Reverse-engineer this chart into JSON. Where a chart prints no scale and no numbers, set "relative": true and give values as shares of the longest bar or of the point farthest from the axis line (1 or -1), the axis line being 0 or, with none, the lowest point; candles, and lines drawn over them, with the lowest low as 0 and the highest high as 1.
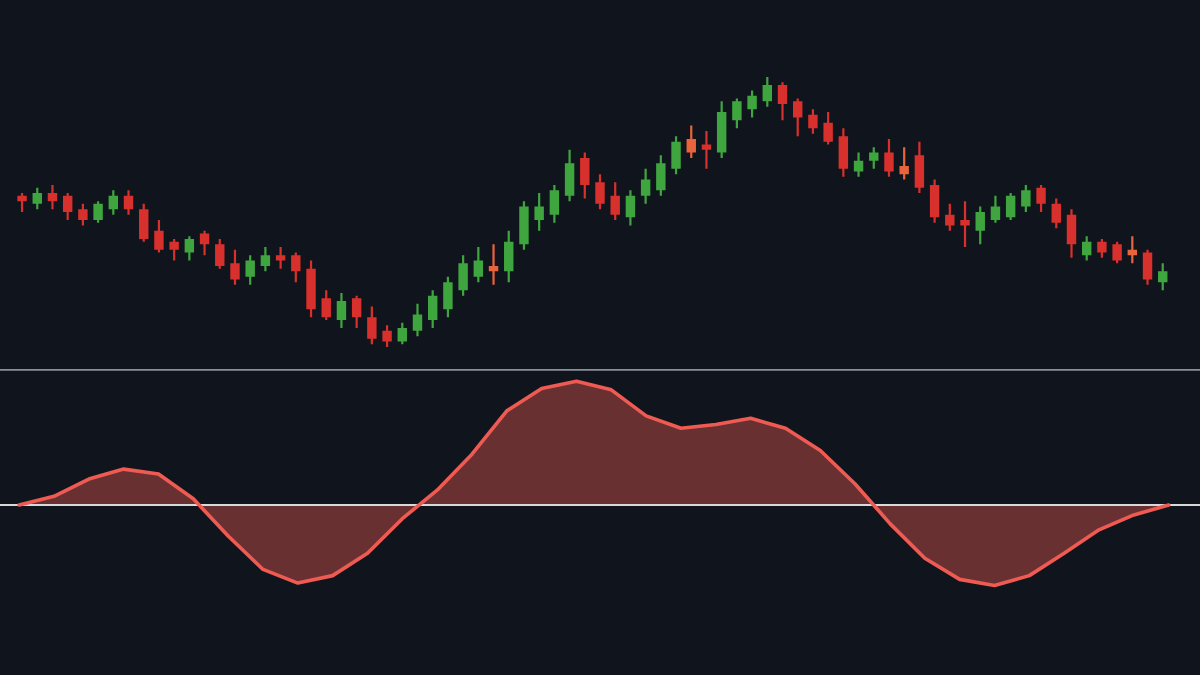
{
  "chart_data": [
    {
      "type": "candlestick",
      "relative": true,
      "categories": [
        null,
        null,
        null,
        null,
        null,
        null,
        null,
        null,
        null,
        null,
        null,
        null,
        null,
        null,
        null,
        null,
        null,
        null,
        null,
        null,
        null,
        null,
        null,
        null,
        null,
        null,
        null,
        null,
        null,
        null,
        null,
        null,
        null,
        null,
        null,
        null,
        null,
        null,
        null,
        null,
        null,
        null,
        null,
        null,
        null,
        null,
        null,
        null,
        null,
        null,
        null,
        null,
        null,
        null,
        null,
        null,
        null,
        null,
        null,
        null,
        null,
        null,
        null,
        null,
        null,
        null,
        null,
        null,
        null,
        null,
        null,
        null,
        null,
        null,
        null,
        null
      ],
      "ohlc": [
        [
          0.56,
          0.57,
          0.5,
          0.54
        ],
        [
          0.53,
          0.59,
          0.51,
          0.57
        ],
        [
          0.57,
          0.6,
          0.51,
          0.54
        ],
        [
          0.56,
          0.57,
          0.47,
          0.5
        ],
        [
          0.51,
          0.53,
          0.45,
          0.47
        ],
        [
          0.47,
          0.54,
          0.46,
          0.53
        ],
        [
          0.51,
          0.58,
          0.49,
          0.56
        ],
        [
          0.56,
          0.58,
          0.49,
          0.51
        ],
        [
          0.51,
          0.53,
          0.39,
          0.4
        ],
        [
          0.43,
          0.47,
          0.35,
          0.36
        ],
        [
          0.39,
          0.4,
          0.32,
          0.36
        ],
        [
          0.35,
          0.41,
          0.32,
          0.4
        ],
        [
          0.42,
          0.43,
          0.34,
          0.38
        ],
        [
          0.38,
          0.4,
          0.29,
          0.3
        ],
        [
          0.31,
          0.36,
          0.23,
          0.25
        ],
        [
          0.26,
          0.34,
          0.23,
          0.32
        ],
        [
          0.3,
          0.37,
          0.28,
          0.34
        ],
        [
          0.34,
          0.37,
          0.29,
          0.32
        ],
        [
          0.34,
          0.35,
          0.24,
          0.28
        ],
        [
          0.29,
          0.32,
          0.11,
          0.14
        ],
        [
          0.18,
          0.21,
          0.1,
          0.11
        ],
        [
          0.1,
          0.2,
          0.07,
          0.17
        ],
        [
          0.18,
          0.19,
          0.07,
          0.11
        ],
        [
          0.11,
          0.15,
          0.01,
          0.03
        ],
        [
          0.06,
          0.08,
          0.0,
          0.02
        ],
        [
          0.02,
          0.09,
          0.01,
          0.07
        ],
        [
          0.06,
          0.16,
          0.04,
          0.12
        ],
        [
          0.1,
          0.21,
          0.07,
          0.19
        ],
        [
          0.14,
          0.26,
          0.11,
          0.24
        ],
        [
          0.21,
          0.34,
          0.19,
          0.31
        ],
        [
          0.26,
          0.37,
          0.24,
          0.32
        ],
        [
          0.3,
          0.38,
          0.23,
          0.28
        ],
        [
          0.28,
          0.43,
          0.24,
          0.39
        ],
        [
          0.38,
          0.54,
          0.36,
          0.52
        ],
        [
          0.47,
          0.57,
          0.43,
          0.52
        ],
        [
          0.49,
          0.6,
          0.46,
          0.58
        ],
        [
          0.56,
          0.73,
          0.54,
          0.68
        ],
        [
          0.7,
          0.72,
          0.55,
          0.6
        ],
        [
          0.61,
          0.64,
          0.51,
          0.53
        ],
        [
          0.56,
          0.61,
          0.47,
          0.49
        ],
        [
          0.48,
          0.58,
          0.45,
          0.56
        ],
        [
          0.56,
          0.66,
          0.53,
          0.62
        ],
        [
          0.58,
          0.71,
          0.56,
          0.68
        ],
        [
          0.66,
          0.78,
          0.64,
          0.76
        ],
        [
          0.77,
          0.82,
          0.7,
          0.72
        ],
        [
          0.75,
          0.8,
          0.66,
          0.73
        ],
        [
          0.72,
          0.91,
          0.7,
          0.87
        ],
        [
          0.84,
          0.92,
          0.81,
          0.91
        ],
        [
          0.88,
          0.95,
          0.85,
          0.93
        ],
        [
          0.91,
          1.0,
          0.89,
          0.97
        ],
        [
          0.97,
          0.98,
          0.84,
          0.9
        ],
        [
          0.91,
          0.92,
          0.78,
          0.85
        ],
        [
          0.86,
          0.88,
          0.79,
          0.81
        ],
        [
          0.83,
          0.87,
          0.75,
          0.76
        ],
        [
          0.78,
          0.81,
          0.63,
          0.66
        ],
        [
          0.65,
          0.72,
          0.63,
          0.69
        ],
        [
          0.69,
          0.74,
          0.66,
          0.72
        ],
        [
          0.72,
          0.77,
          0.63,
          0.65
        ],
        [
          0.67,
          0.74,
          0.62,
          0.64
        ],
        [
          0.71,
          0.76,
          0.57,
          0.59
        ],
        [
          0.6,
          0.62,
          0.46,
          0.48
        ],
        [
          0.49,
          0.53,
          0.43,
          0.45
        ],
        [
          0.47,
          0.54,
          0.37,
          0.45
        ],
        [
          0.43,
          0.52,
          0.38,
          0.5
        ],
        [
          0.47,
          0.56,
          0.46,
          0.52
        ],
        [
          0.48,
          0.57,
          0.47,
          0.56
        ],
        [
          0.52,
          0.6,
          0.5,
          0.58
        ],
        [
          0.59,
          0.6,
          0.5,
          0.53
        ],
        [
          0.53,
          0.55,
          0.44,
          0.46
        ],
        [
          0.49,
          0.51,
          0.33,
          0.38
        ],
        [
          0.34,
          0.41,
          0.32,
          0.39
        ],
        [
          0.39,
          0.4,
          0.33,
          0.35
        ],
        [
          0.38,
          0.39,
          0.31,
          0.32
        ],
        [
          0.36,
          0.41,
          0.31,
          0.34
        ],
        [
          0.35,
          0.36,
          0.23,
          0.25
        ],
        [
          0.24,
          0.31,
          0.21,
          0.28
        ]
      ],
      "colors": [
        "#d8302c",
        "#3fa63f",
        "#d8302c",
        "#d8302c",
        "#d8302c",
        "#3fa63f",
        "#3fa63f",
        "#d8302c",
        "#d8302c",
        "#d8302c",
        "#d8302c",
        "#3fa63f",
        "#d8302c",
        "#d8302c",
        "#d8302c",
        "#3fa63f",
        "#3fa63f",
        "#d8302c",
        "#d8302c",
        "#d8302c",
        "#d8302c",
        "#3fa63f",
        "#d8302c",
        "#d8302c",
        "#d8302c",
        "#3fa63f",
        "#3fa63f",
        "#3fa63f",
        "#3fa63f",
        "#3fa63f",
        "#3fa63f",
        "#e8643c",
        "#3fa63f",
        "#3fa63f",
        "#3fa63f",
        "#3fa63f",
        "#3fa63f",
        "#d8302c",
        "#d8302c",
        "#d8302c",
        "#3fa63f",
        "#3fa63f",
        "#3fa63f",
        "#3fa63f",
        "#e8643c",
        "#d8302c",
        "#3fa63f",
        "#3fa63f",
        "#3fa63f",
        "#3fa63f",
        "#d8302c",
        "#d8302c",
        "#d8302c",
        "#d8302c",
        "#d8302c",
        "#3fa63f",
        "#3fa63f",
        "#d8302c",
        "#e8643c",
        "#d8302c",
        "#d8302c",
        "#d8302c",
        "#d8302c",
        "#3fa63f",
        "#3fa63f",
        "#3fa63f",
        "#3fa63f",
        "#d8302c",
        "#d8302c",
        "#d8302c",
        "#3fa63f",
        "#d8302c",
        "#d8302c",
        "#e8643c",
        "#d8302c",
        "#3fa63f"
      ]
    },
    {
      "type": "area",
      "relative": true,
      "categories": [
        null,
        null,
        null,
        null,
        null,
        null,
        null,
        null,
        null,
        null,
        null,
        null,
        null,
        null,
        null,
        null,
        null,
        null,
        null,
        null,
        null,
        null,
        null,
        null,
        null,
        null,
        null,
        null,
        null,
        null,
        null,
        null,
        null,
        null
      ],
      "series": [
        {
          "color": "#ef5a52",
          "values": [
            0,
            0.07,
            0.21,
            0.29,
            0.25,
            0.05,
            -0.25,
            -0.52,
            -0.63,
            -0.57,
            -0.39,
            -0.11,
            0.12,
            0.41,
            0.76,
            0.94,
            1.0,
            0.93,
            0.72,
            0.62,
            0.65,
            0.7,
            0.62,
            0.44,
            0.17,
            -0.15,
            -0.43,
            -0.6,
            -0.65,
            -0.57,
            -0.39,
            -0.2,
            -0.08,
            0
          ]
        }
      ],
      "ref_lines": [
        {
          "axis": "y",
          "value": 0,
          "color": "#d9d9d9"
        }
      ]
    }
  ]
}
